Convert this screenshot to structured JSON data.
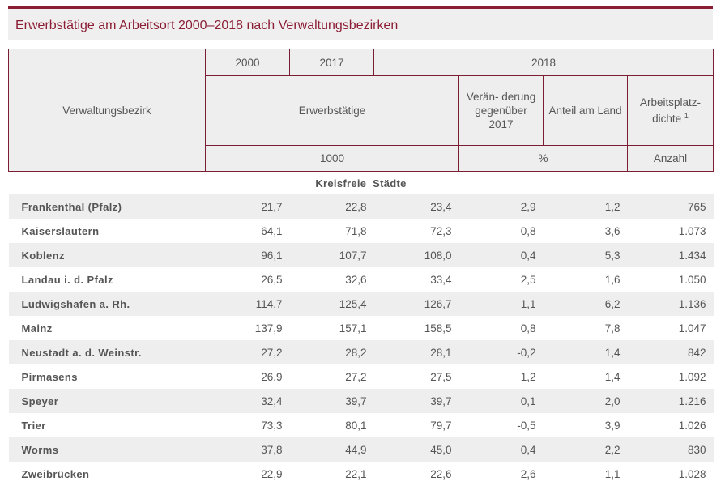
{
  "title": "Erwerbstätige am Arbeitsort 2000–2018 nach Verwaltungsbezirken",
  "header": {
    "district": "Verwaltungsbezirk",
    "y2000": "2000",
    "y2017": "2017",
    "y2018": "2018",
    "employed": "Erwerbstätige",
    "change": "Verän- derung gegenüber 2017",
    "share": "Anteil am Land",
    "density": "Arbeitsplatz- dichte",
    "density_footnote": "1",
    "unit_1000": "1000",
    "unit_pct": "%",
    "unit_count": "Anzahl"
  },
  "section": "Kreisfreie  Städte",
  "rows": [
    {
      "name": "Frankenthal (Pfalz)",
      "v2000": "21,7",
      "v2017": "22,8",
      "v2018": "23,4",
      "change": "2,9",
      "share": "1,2",
      "density": "765"
    },
    {
      "name": "Kaiserslautern",
      "v2000": "64,1",
      "v2017": "71,8",
      "v2018": "72,3",
      "change": "0,8",
      "share": "3,6",
      "density": "1.073"
    },
    {
      "name": "Koblenz",
      "v2000": "96,1",
      "v2017": "107,7",
      "v2018": "108,0",
      "change": "0,4",
      "share": "5,3",
      "density": "1.434"
    },
    {
      "name": "Landau i. d. Pfalz",
      "v2000": "26,5",
      "v2017": "32,6",
      "v2018": "33,4",
      "change": "2,5",
      "share": "1,6",
      "density": "1.050"
    },
    {
      "name": "Ludwigshafen a. Rh.",
      "v2000": "114,7",
      "v2017": "125,4",
      "v2018": "126,7",
      "change": "1,1",
      "share": "6,2",
      "density": "1.136"
    },
    {
      "name": "Mainz",
      "v2000": "137,9",
      "v2017": "157,1",
      "v2018": "158,5",
      "change": "0,8",
      "share": "7,8",
      "density": "1.047"
    },
    {
      "name": "Neustadt a. d. Weinstr.",
      "v2000": "27,2",
      "v2017": "28,2",
      "v2018": "28,1",
      "change": "-0,2",
      "share": "1,4",
      "density": "842"
    },
    {
      "name": "Pirmasens",
      "v2000": "26,9",
      "v2017": "27,2",
      "v2018": "27,5",
      "change": "1,2",
      "share": "1,4",
      "density": "1.092"
    },
    {
      "name": "Speyer",
      "v2000": "32,4",
      "v2017": "39,7",
      "v2018": "39,7",
      "change": "0,1",
      "share": "2,0",
      "density": "1.216"
    },
    {
      "name": "Trier",
      "v2000": "73,3",
      "v2017": "80,1",
      "v2018": "79,7",
      "change": "-0,5",
      "share": "3,9",
      "density": "1.026"
    },
    {
      "name": "Worms",
      "v2000": "37,8",
      "v2017": "44,9",
      "v2018": "45,0",
      "change": "0,4",
      "share": "2,2",
      "density": "830"
    },
    {
      "name": "Zweibrücken",
      "v2000": "22,9",
      "v2017": "22,1",
      "v2018": "22,6",
      "change": "2,6",
      "share": "1,1",
      "density": "1.028"
    }
  ]
}
